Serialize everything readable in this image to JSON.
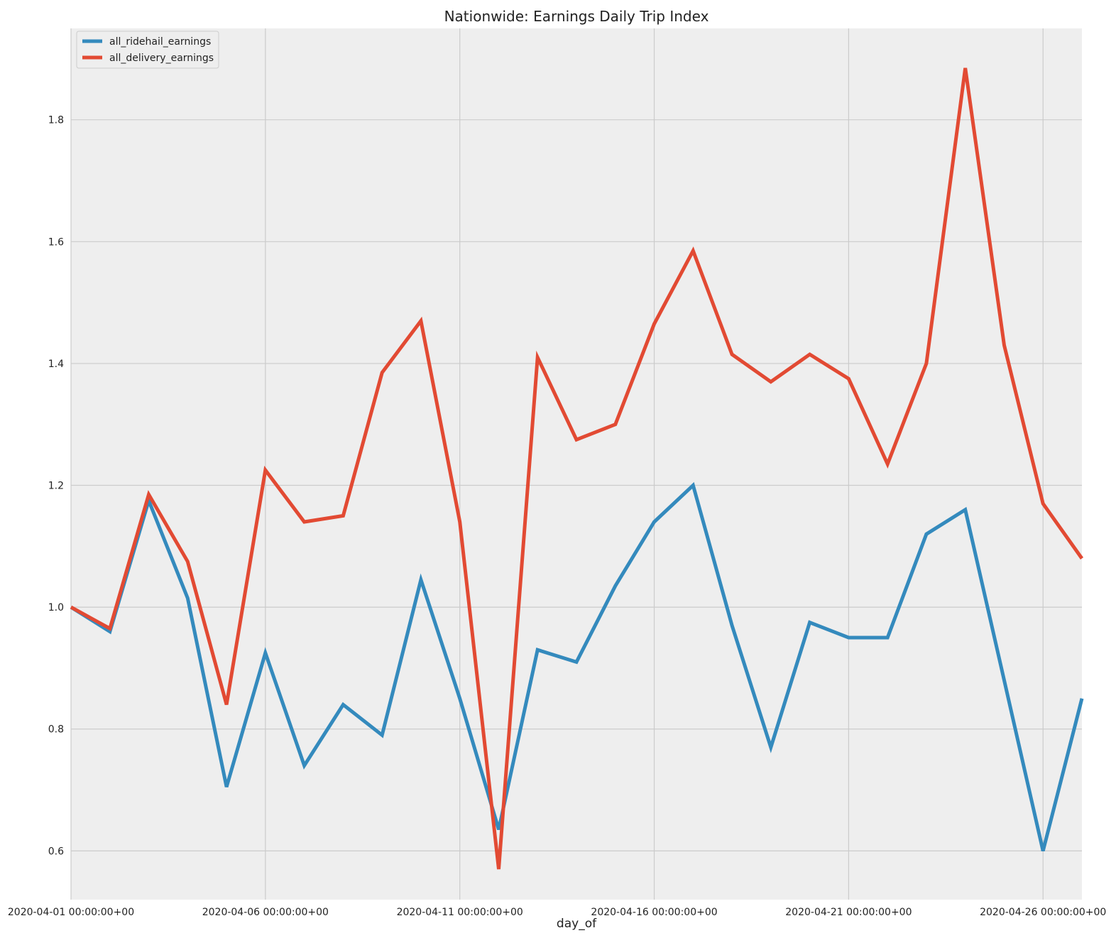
{
  "chart_data": {
    "type": "line",
    "title": "Nationwide: Earnings Daily Trip Index",
    "xlabel": "day_of",
    "ylabel": "",
    "x": [
      "2020-04-01",
      "2020-04-02",
      "2020-04-03",
      "2020-04-04",
      "2020-04-05",
      "2020-04-06",
      "2020-04-07",
      "2020-04-08",
      "2020-04-09",
      "2020-04-10",
      "2020-04-11",
      "2020-04-12",
      "2020-04-13",
      "2020-04-14",
      "2020-04-15",
      "2020-04-16",
      "2020-04-17",
      "2020-04-18",
      "2020-04-19",
      "2020-04-20",
      "2020-04-21",
      "2020-04-22",
      "2020-04-23",
      "2020-04-24",
      "2020-04-25",
      "2020-04-26",
      "2020-04-27"
    ],
    "x_tick_labels": [
      {
        "x": "2020-04-01",
        "label": "2020-04-01 00:00:00+00"
      },
      {
        "x": "2020-04-06",
        "label": "2020-04-06 00:00:00+00"
      },
      {
        "x": "2020-04-11",
        "label": "2020-04-11 00:00:00+00"
      },
      {
        "x": "2020-04-16",
        "label": "2020-04-16 00:00:00+00"
      },
      {
        "x": "2020-04-21",
        "label": "2020-04-21 00:00:00+00"
      },
      {
        "x": "2020-04-26",
        "label": "2020-04-26 00:00:00+00"
      }
    ],
    "y_ticks": [
      0.6,
      0.8,
      1.0,
      1.2,
      1.4,
      1.6,
      1.8
    ],
    "y_tick_labels": [
      "0.6",
      "0.8",
      "1.0",
      "1.2",
      "1.4",
      "1.6",
      "1.8"
    ],
    "ylim": [
      0.52,
      1.95
    ],
    "grid": true,
    "legend_position": "top-left",
    "series": [
      {
        "name": "all_ridehail_earnings",
        "color": "#348ABD",
        "values": [
          1.0,
          0.96,
          1.175,
          1.015,
          0.705,
          0.925,
          0.74,
          0.84,
          0.79,
          1.045,
          0.85,
          0.635,
          0.93,
          0.91,
          1.035,
          1.14,
          1.2,
          0.97,
          0.77,
          0.975,
          0.95,
          0.95,
          1.12,
          1.16,
          0.88,
          0.6,
          0.85
        ]
      },
      {
        "name": "all_delivery_earnings",
        "color": "#E24A33",
        "values": [
          1.0,
          0.965,
          1.185,
          1.075,
          0.84,
          1.225,
          1.14,
          1.15,
          1.385,
          1.47,
          1.14,
          0.57,
          1.41,
          1.275,
          1.3,
          1.465,
          1.585,
          1.415,
          1.37,
          1.415,
          1.375,
          1.235,
          1.4,
          1.885,
          1.43,
          1.17,
          1.08
        ]
      }
    ]
  }
}
